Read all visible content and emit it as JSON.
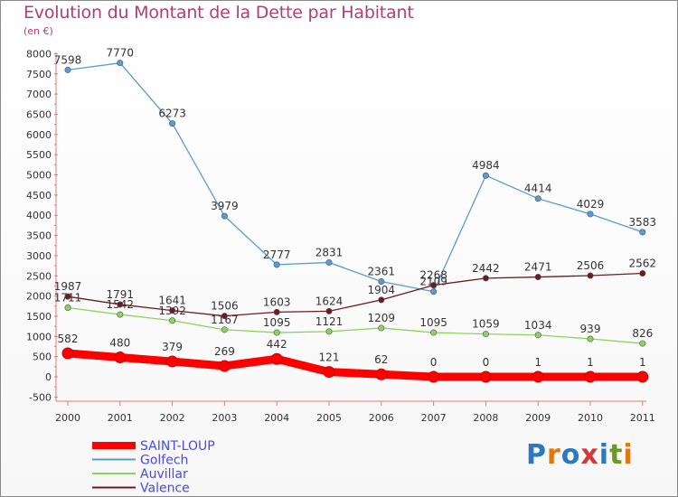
{
  "title": "Evolution du Montant de la Dette par Habitant",
  "subtitle": "(en €)",
  "logo": {
    "text": "Proxiti",
    "letters": [
      "P",
      "r",
      "o",
      "x",
      "i",
      "t",
      "i"
    ],
    "colors": [
      "#2a7ac0",
      "#e07a10",
      "#2a7ac0",
      "#d03a3a",
      "#2a7ac0",
      "#6a9a20",
      "#e07a10"
    ]
  },
  "chart_data": {
    "type": "line",
    "title": "Evolution du Montant de la Dette par Habitant",
    "subtitle": "(en €)",
    "x": [
      "2000",
      "2001",
      "2002",
      "2003",
      "2004",
      "2005",
      "2006",
      "2007",
      "2008",
      "2009",
      "2010",
      "2011"
    ],
    "ylim": [
      -500,
      8000
    ],
    "yticks": [
      "-500",
      "0",
      "500",
      "1000",
      "1500",
      "2000",
      "2500",
      "3000",
      "3500",
      "4000",
      "4500",
      "5000",
      "5500",
      "6000",
      "6500",
      "7000",
      "7500",
      "8000"
    ],
    "legend_position": "bottom-left",
    "series": [
      {
        "name": "SAINT-LOUP",
        "color": "#ff0000",
        "bold": true,
        "labels": [
          "582",
          "480",
          "379",
          "269",
          "442",
          "121",
          "62",
          "0",
          "0",
          "1",
          "1",
          "1"
        ],
        "values": [
          582,
          480,
          379,
          269,
          442,
          121,
          62,
          0,
          0,
          1,
          1,
          1
        ]
      },
      {
        "name": "Golfech",
        "color": "#5a9bd5",
        "labels": [
          "7598",
          "7770",
          "6273",
          "3979",
          "2777",
          "2831",
          "2361",
          "2109",
          "4984",
          "4414",
          "4029",
          "3583"
        ],
        "values": [
          7598,
          7770,
          6273,
          3979,
          2777,
          2831,
          2361,
          2109,
          4984,
          4414,
          4029,
          3583
        ]
      },
      {
        "name": "Auvillar",
        "color": "#90d060",
        "labels": [
          "1711",
          "1542",
          "1392",
          "1167",
          "1095",
          "1121",
          "1209",
          "1095",
          "1059",
          "1034",
          "939",
          "826"
        ],
        "values": [
          1711,
          1542,
          1392,
          1167,
          1095,
          1121,
          1209,
          1095,
          1059,
          1034,
          939,
          826
        ]
      },
      {
        "name": "Valence",
        "color": "#6a1c22",
        "labels": [
          "1987",
          "1791",
          "1641",
          "1506",
          "1603",
          "1624",
          "1904",
          "2268",
          "2442",
          "2471",
          "2506",
          "2562"
        ],
        "values": [
          1987,
          1791,
          1641,
          1506,
          1603,
          1624,
          1904,
          2268,
          2442,
          2471,
          2506,
          2562
        ]
      }
    ]
  }
}
